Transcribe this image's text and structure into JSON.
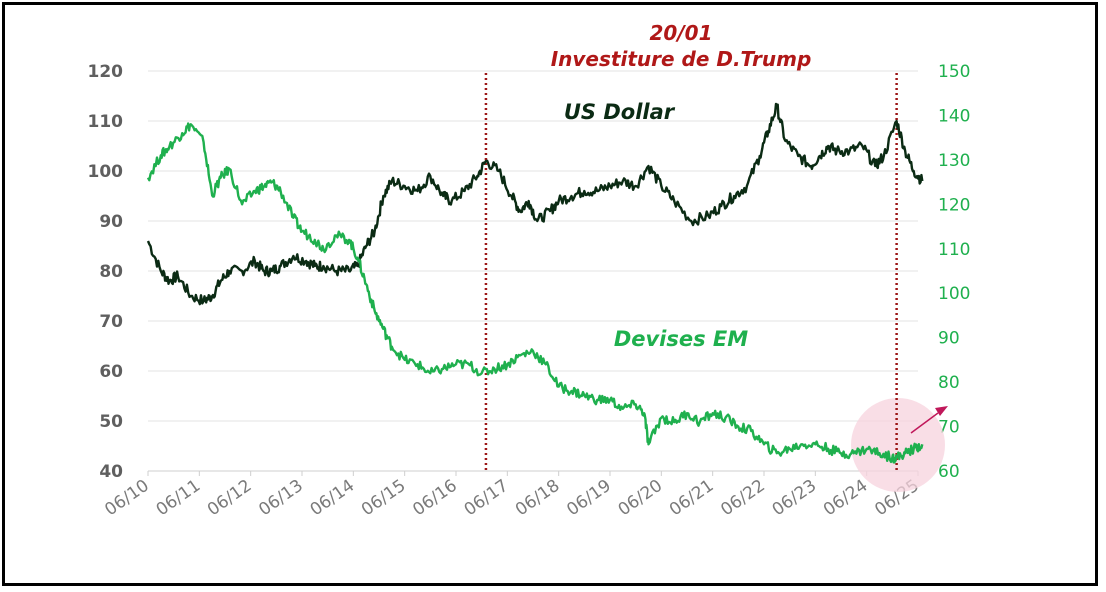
{
  "chart_data": {
    "type": "line",
    "title": "",
    "annotation": {
      "date_label": "20/01",
      "text": "Investiture de D.Trump"
    },
    "x_tick_labels": [
      "06/10",
      "06/11",
      "06/12",
      "06/13",
      "06/14",
      "06/15",
      "06/16",
      "06/17",
      "06/18",
      "06/19",
      "06/20",
      "06/21",
      "06/22",
      "06/23",
      "06/24",
      "06/25"
    ],
    "y_left": {
      "ticks": [
        40,
        50,
        60,
        70,
        80,
        90,
        100,
        110,
        120
      ],
      "range": [
        40,
        120
      ]
    },
    "y_right": {
      "ticks": [
        60,
        70,
        80,
        90,
        100,
        110,
        120,
        130,
        140,
        150
      ],
      "range": [
        60,
        150
      ]
    },
    "vertical_markers": [
      "01/2017",
      "01/2025"
    ],
    "series": [
      {
        "name": "US Dollar",
        "axis": "left",
        "color": "#0b2b14",
        "x": [
          "06/2010",
          "09/2010",
          "11/2010",
          "01/2011",
          "04/2011",
          "07/2011",
          "09/2011",
          "11/2011",
          "01/2012",
          "04/2012",
          "07/2012",
          "09/2012",
          "11/2012",
          "01/2013",
          "04/2013",
          "07/2013",
          "09/2013",
          "11/2013",
          "02/2014",
          "05/2014",
          "07/2014",
          "09/2014",
          "11/2014",
          "01/2015",
          "03/2015",
          "06/2015",
          "09/2015",
          "12/2015",
          "03/2016",
          "05/2016",
          "08/2016",
          "11/2016",
          "01/2017",
          "04/2017",
          "07/2017",
          "09/2017",
          "11/2017",
          "01/2018",
          "04/2018",
          "06/2018",
          "09/2018",
          "12/2018",
          "03/2019",
          "06/2019",
          "09/2019",
          "12/2019",
          "03/2020",
          "06/2020",
          "09/2020",
          "01/2021",
          "05/2021",
          "08/2021",
          "11/2021",
          "02/2022",
          "05/2022",
          "07/2022",
          "09/2022",
          "11/2022",
          "02/2023",
          "05/2023",
          "07/2023",
          "09/2023",
          "11/2023",
          "02/2024",
          "05/2024",
          "08/2024",
          "10/2024",
          "01/2025",
          "03/2025",
          "05/2025",
          "07/2025"
        ],
        "values": [
          86,
          80,
          78,
          79,
          75,
          74,
          75,
          78,
          80,
          80,
          82,
          80,
          80,
          81,
          83,
          82,
          81,
          81,
          80,
          80,
          81,
          85,
          88,
          95,
          98,
          97,
          96,
          99,
          95,
          94,
          96,
          99,
          102,
          100,
          95,
          92,
          94,
          90,
          92,
          94,
          95,
          96,
          96,
          97,
          98,
          97,
          101,
          97,
          94,
          90,
          91,
          93,
          95,
          97,
          103,
          108,
          113,
          106,
          103,
          101,
          103,
          105,
          104,
          104,
          105,
          101,
          103,
          110,
          104,
          100,
          98
        ]
      },
      {
        "name": "Devises EM",
        "axis": "right",
        "color": "#1fb04e",
        "x": [
          "06/2010",
          "09/2010",
          "11/2010",
          "02/2011",
          "04/2011",
          "07/2011",
          "09/2011",
          "11/2011",
          "01/2012",
          "04/2012",
          "07/2012",
          "09/2012",
          "11/2012",
          "01/2013",
          "04/2013",
          "06/2013",
          "09/2013",
          "11/2013",
          "02/2014",
          "05/2014",
          "07/2014",
          "09/2014",
          "11/2014",
          "01/2015",
          "03/2015",
          "06/2015",
          "09/2015",
          "12/2015",
          "03/2016",
          "06/2016",
          "09/2016",
          "12/2016",
          "03/2017",
          "06/2017",
          "09/2017",
          "12/2017",
          "03/2018",
          "06/2018",
          "09/2018",
          "12/2018",
          "03/2019",
          "06/2019",
          "09/2019",
          "12/2019",
          "02/2020",
          "03/2020",
          "06/2020",
          "09/2020",
          "12/2020",
          "03/2021",
          "06/2021",
          "09/2021",
          "12/2021",
          "03/2022",
          "06/2022",
          "09/2022",
          "12/2022",
          "03/2023",
          "06/2023",
          "09/2023",
          "12/2023",
          "03/2024",
          "06/2024",
          "09/2024",
          "12/2024",
          "01/2025",
          "03/2025",
          "05/2025",
          "07/2025"
        ],
        "values": [
          126,
          131,
          133,
          136,
          138,
          134,
          122,
          126,
          128,
          120,
          123,
          124,
          125,
          123,
          117,
          114,
          112,
          110,
          113,
          112,
          108,
          102,
          96,
          92,
          88,
          85,
          84,
          82,
          83,
          84,
          84,
          82,
          83,
          84,
          86,
          87,
          84,
          79,
          78,
          77,
          76,
          76,
          74,
          75,
          73,
          66,
          72,
          71,
          73,
          71,
          73,
          72,
          70,
          69,
          66,
          64,
          65,
          66,
          66,
          65,
          64,
          64,
          65,
          64,
          63,
          63,
          64,
          65,
          66
        ]
      }
    ]
  }
}
